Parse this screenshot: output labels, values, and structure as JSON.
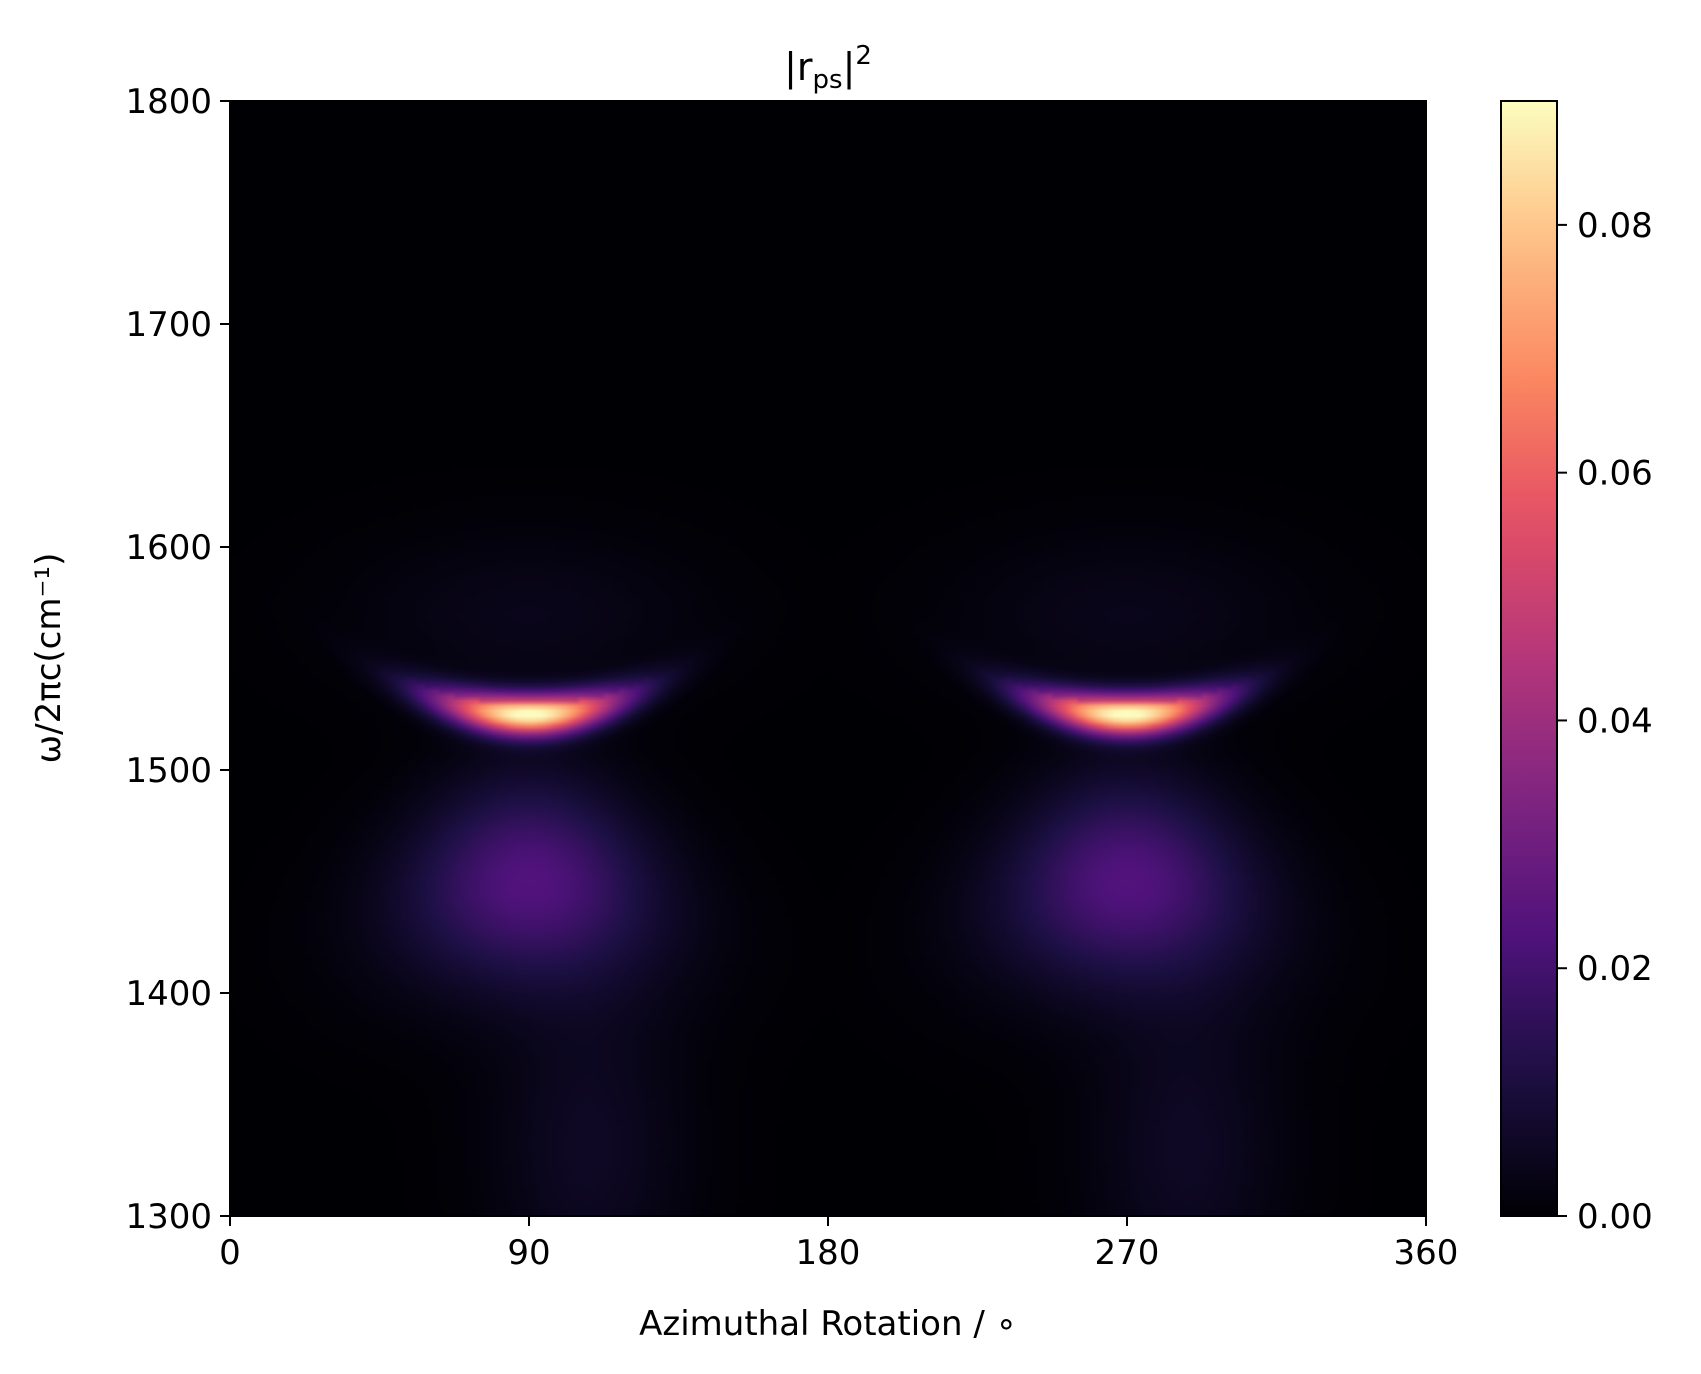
{
  "chart_data": {
    "type": "heatmap",
    "title": {
      "base": "|r",
      "subscript": "ps",
      "close": "|",
      "superscript": "2"
    },
    "xlabel": "Azimuthal Rotation / ∘",
    "ylabel": "ω/2πc(cm⁻¹)",
    "xlim": [
      0,
      360
    ],
    "ylim": [
      1300,
      1800
    ],
    "xticks": [
      0,
      90,
      180,
      270,
      360
    ],
    "xtick_labels": [
      "0",
      "90",
      "180",
      "270",
      "360"
    ],
    "yticks": [
      1300,
      1400,
      1500,
      1600,
      1700,
      1800
    ],
    "ytick_labels": [
      "1300",
      "1400",
      "1500",
      "1600",
      "1700",
      "1800"
    ],
    "colormap": "magma",
    "colorbar": {
      "vmin": 0,
      "vmax": 0.09,
      "ticks": [
        0,
        0.02,
        0.04,
        0.06,
        0.08
      ],
      "tick_labels": [
        "0.00",
        "0.02",
        "0.04",
        "0.06",
        "0.08"
      ]
    },
    "features": [
      {
        "x_center": 90,
        "y_center": 1525,
        "peak_value": 0.09
      },
      {
        "x_center": 270,
        "y_center": 1525,
        "peak_value": 0.09
      }
    ],
    "grid": false
  }
}
